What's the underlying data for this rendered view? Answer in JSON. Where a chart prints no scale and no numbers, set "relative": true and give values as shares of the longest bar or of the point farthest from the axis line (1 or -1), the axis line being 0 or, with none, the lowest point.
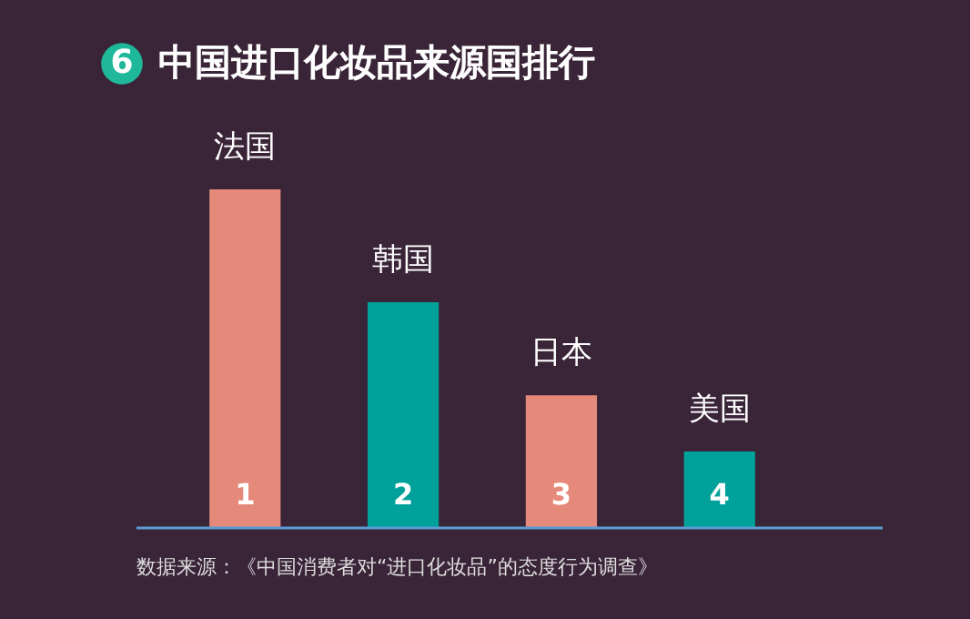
{
  "chart_data": {
    "type": "bar",
    "title": "中国进口化妆品来源国排行",
    "relative": true,
    "categories": [
      "法国",
      "韩国",
      "日本",
      "美国"
    ],
    "values": [
      1,
      0.667,
      0.392,
      0.226
    ],
    "colors": [
      "#e58a7b",
      "#00a19a",
      "#e58a7b",
      "#00a19a"
    ],
    "annotations": [
      "6",
      "1",
      "2",
      "3",
      "4",
      "数据来源：《中国消费者对“进口化妆品”的态度行为调查》"
    ],
    "data_labels": false
  }
}
